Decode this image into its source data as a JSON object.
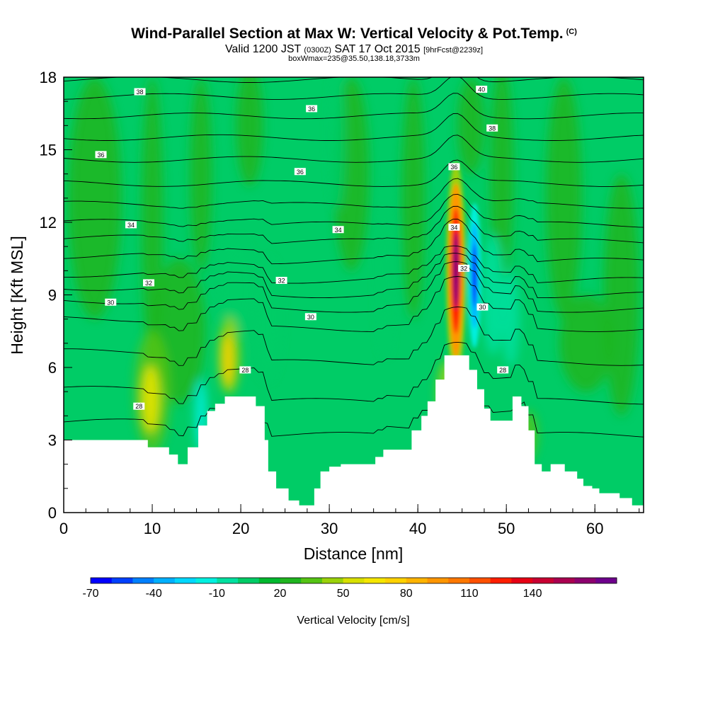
{
  "header": {
    "title": "Wind-Parallel Section at Max W: Vertical Velocity & Pot.Temp.",
    "copyright": "(C)",
    "valid_prefix": "Valid 1200 JST",
    "valid_utc": "(0300Z)",
    "valid_date": "SAT 17 Oct 2015",
    "forecast": "[9hrFcst@2239z]",
    "box_wmax": "boxWmax=235@35.50,138.18,3733m"
  },
  "chart_data": {
    "type": "heatmap",
    "xlabel": "Distance [nm]",
    "ylabel": "Height [Kft MSL]",
    "xlim": [
      0,
      65.5
    ],
    "ylim": [
      0,
      18
    ],
    "x_ticks": [
      0,
      10,
      20,
      30,
      40,
      50,
      60
    ],
    "y_ticks": [
      0,
      3,
      6,
      9,
      12,
      15,
      18
    ],
    "terrain": {
      "x": [
        0,
        7.5,
        9.5,
        11.9,
        12.9,
        14,
        15.2,
        16.2,
        17.1,
        18.2,
        19.4,
        21.7,
        22.7,
        23.1,
        24,
        25.4,
        26.6,
        28.3,
        29,
        30,
        31.3,
        35.2,
        36.1,
        39.3,
        40.4,
        41.1,
        42,
        43,
        44.9,
        45.8,
        46.7,
        47.5,
        48.2,
        50.7,
        51.7,
        52.5,
        53.2,
        54,
        55,
        55.6,
        56.6,
        58,
        58.7,
        59.7,
        60.5,
        62.8,
        64.2,
        65.5
      ],
      "height_kft": [
        3,
        3,
        2.7,
        2.4,
        2.0,
        2.7,
        3.6,
        4.2,
        4.5,
        4.8,
        4.8,
        4.4,
        3.0,
        1.7,
        1.0,
        0.5,
        0.3,
        1.0,
        1.7,
        1.9,
        2.0,
        2.3,
        2.6,
        3.4,
        4.0,
        4.6,
        5.5,
        6.5,
        6.5,
        5.9,
        5.1,
        4.3,
        3.8,
        4.8,
        4.4,
        3.4,
        2.0,
        1.7,
        2.0,
        2.0,
        1.7,
        1.4,
        1.1,
        1.0,
        0.8,
        0.6,
        0.3,
        0.3
      ]
    },
    "theta_contour_labels": [
      {
        "text": "28",
        "x": 8.5,
        "y": 4.4
      },
      {
        "text": "28",
        "x": 20.5,
        "y": 5.9
      },
      {
        "text": "28",
        "x": 49.6,
        "y": 5.9
      },
      {
        "text": "30",
        "x": 5.3,
        "y": 8.7
      },
      {
        "text": "30",
        "x": 27.9,
        "y": 8.1
      },
      {
        "text": "30",
        "x": 47.3,
        "y": 8.5
      },
      {
        "text": "32",
        "x": 9.6,
        "y": 9.5
      },
      {
        "text": "32",
        "x": 24.6,
        "y": 9.6
      },
      {
        "text": "32",
        "x": 45.2,
        "y": 10.1
      },
      {
        "text": "34",
        "x": 7.6,
        "y": 11.9
      },
      {
        "text": "34",
        "x": 31.0,
        "y": 11.7
      },
      {
        "text": "34",
        "x": 44.1,
        "y": 11.8
      },
      {
        "text": "36",
        "x": 4.2,
        "y": 14.8
      },
      {
        "text": "36",
        "x": 26.7,
        "y": 14.1
      },
      {
        "text": "36",
        "x": 44.1,
        "y": 14.3
      },
      {
        "text": "36",
        "x": 28.0,
        "y": 16.7
      },
      {
        "text": "38",
        "x": 8.6,
        "y": 17.4
      },
      {
        "text": "38",
        "x": 48.4,
        "y": 15.9
      },
      {
        "text": "40",
        "x": 47.2,
        "y": 17.5
      }
    ],
    "updraft_max": {
      "x": 44.3,
      "y": 10.0,
      "value_cm_s": 150
    },
    "downdraft_min": {
      "x": 46.4,
      "y": 9.8,
      "value_cm_s": -70
    },
    "colorbar": {
      "label": "Vertical Velocity [cm/s]",
      "tick_labels": [
        "-70",
        "-40",
        "-10",
        "20",
        "50",
        "80",
        "110",
        "140"
      ],
      "tick_values": [
        -70,
        -40,
        -10,
        20,
        50,
        80,
        110,
        140
      ],
      "colors": [
        "#0000ff",
        "#0040ff",
        "#0080ff",
        "#00b0ff",
        "#00d8ff",
        "#00f0e0",
        "#00e0a0",
        "#00cc66",
        "#00b82e",
        "#1fb51f",
        "#55c414",
        "#9ad20a",
        "#d8e000",
        "#f5e600",
        "#ffd200",
        "#ffb400",
        "#ff9600",
        "#ff7800",
        "#ff5000",
        "#ff1e00",
        "#e60014",
        "#c80032",
        "#aa0050",
        "#8c006e",
        "#6e008c"
      ]
    }
  }
}
